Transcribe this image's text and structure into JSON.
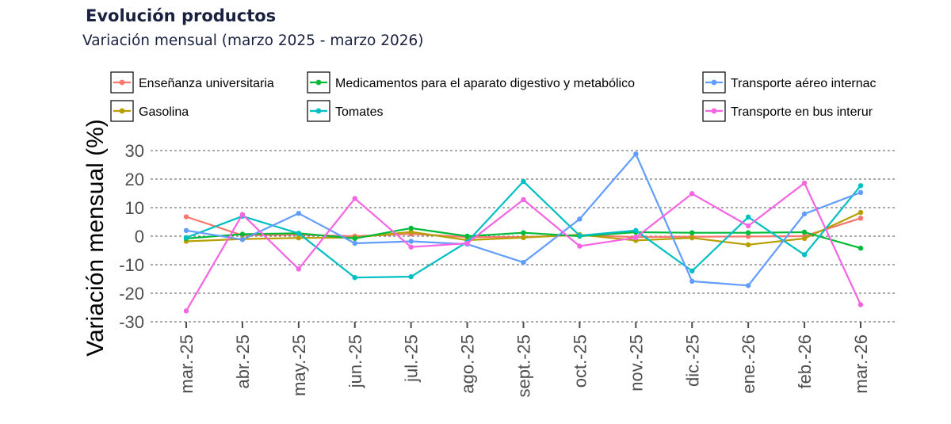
{
  "header": {
    "title": "Evolución productos",
    "subtitle": "Variación mensual (marzo 2025 - marzo 2026)"
  },
  "chart_data": {
    "type": "line",
    "title": "Evolución productos",
    "subtitle": "Variación mensual (marzo 2025 - marzo 2026)",
    "xlabel": "",
    "ylabel": "Variación mensual (%)",
    "ylim": [
      -32,
      32
    ],
    "yticks": [
      30,
      20,
      10,
      0,
      -10,
      -20,
      -30
    ],
    "ytick_labels": [
      "30",
      "20",
      "10",
      "0",
      "-10",
      "-20",
      "-30"
    ],
    "grid": true,
    "legend_position": "top",
    "categories": [
      "mar.-25",
      "abr.-25",
      "may.-25",
      "jun.-25",
      "jul.-25",
      "ago.-25",
      "sept.-25",
      "oct.-25",
      "nov.-25",
      "dic.-25",
      "ene.-26",
      "feb.-26",
      "mar.-26"
    ],
    "series": [
      {
        "name": "Enseñanza universitaria",
        "display_name": "Enseñanza universitaria",
        "color": "#f8766d",
        "values": [
          6.8,
          0.3,
          0.5,
          0.0,
          0.8,
          -0.3,
          -0.3,
          0.4,
          -0.3,
          -0.2,
          -0.1,
          0.0,
          6.3
        ]
      },
      {
        "name": "Gasolina",
        "display_name": "Gasolina",
        "color": "#b79f00",
        "values": [
          -1.8,
          -1.0,
          -0.6,
          -0.5,
          1.5,
          -1.4,
          -0.5,
          0.5,
          -1.5,
          -0.6,
          -3.0,
          -0.8,
          8.3
        ]
      },
      {
        "name": "Medicamentos para el aparato digestivo y metabólico",
        "display_name": "Medicamentos para el aparato digestivo y metabólico",
        "color": "#00ba38",
        "values": [
          -0.8,
          0.7,
          1.0,
          -0.8,
          2.8,
          0.0,
          1.2,
          0.0,
          1.4,
          1.2,
          1.2,
          1.4,
          -4.2
        ]
      },
      {
        "name": "Tomates",
        "display_name": "Tomates",
        "color": "#00bfc4",
        "values": [
          -0.5,
          7.0,
          1.0,
          -14.5,
          -14.2,
          -2.0,
          19.2,
          0.2,
          2.0,
          -12.2,
          6.7,
          -6.5,
          17.7
        ]
      },
      {
        "name": "Transporte aéreo internacional",
        "display_name": "Transporte aéreo internac",
        "color": "#619cff",
        "values": [
          2.0,
          -1.2,
          8.0,
          -2.5,
          -1.8,
          -2.8,
          -9.2,
          6.0,
          28.8,
          -15.8,
          -17.3,
          7.8,
          15.3
        ]
      },
      {
        "name": "Transporte en bus interurbano",
        "display_name": "Transporte en bus interur",
        "color": "#f564e3",
        "values": [
          -26.2,
          7.6,
          -11.5,
          13.2,
          -3.8,
          -2.5,
          12.8,
          -3.5,
          -0.5,
          14.9,
          3.6,
          18.6,
          -24.0
        ]
      }
    ]
  }
}
